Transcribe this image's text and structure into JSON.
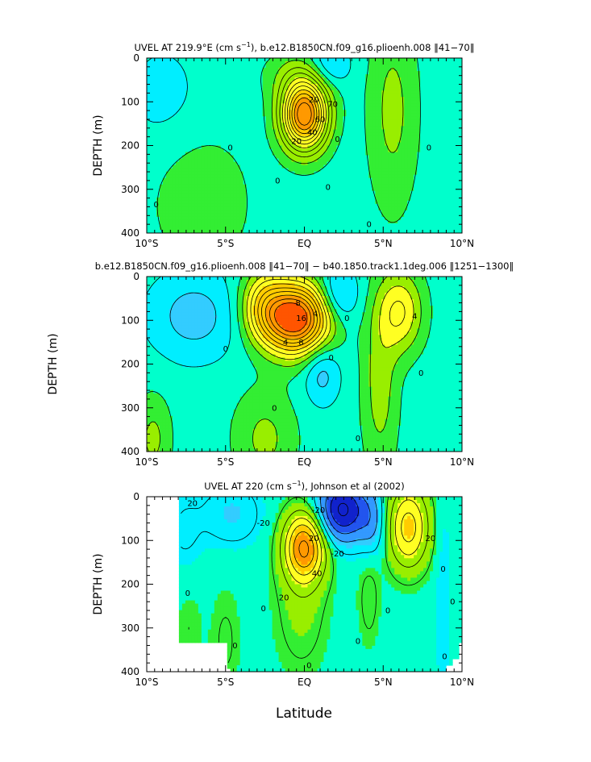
{
  "colors": {
    "background_0": "#00ffcc",
    "pos_1": "#33ee33",
    "pos_2": "#99ee00",
    "pos_3": "#ffff22",
    "pos_4": "#ffcc00",
    "pos_5": "#ff9900",
    "pos_6": "#ff5500",
    "pos_7": "#ee1100",
    "neg_1": "#00eeff",
    "neg_2": "#33ccff",
    "neg_3": "#3399ff",
    "neg_4": "#2255ee",
    "neg_5": "#1122cc",
    "contour_line": "#000000"
  },
  "figure": {
    "xlabel": "Latitude"
  },
  "chart_data": [
    {
      "type": "heatmap",
      "title": "UVEL AT 219.9°E (cm s",
      "title_sup": "−1",
      "title_rest": "), b.e12.B1850CN.f09_g16.plioenh.008 ‖41−70‖",
      "ylabel": "DEPTH (m)",
      "xlabel": "",
      "x_range": [
        -10,
        10
      ],
      "y_range": [
        0,
        400
      ],
      "y_inverted": true,
      "x_tick_labels": [
        "10°S",
        "5°S",
        "EQ",
        "5°N",
        "10°N"
      ],
      "x_tick_values": [
        -10,
        -5,
        0,
        5,
        10
      ],
      "y_tick_values": [
        0,
        100,
        200,
        300,
        400
      ],
      "blobs": [
        {
          "x": 0,
          "y": 130,
          "sx": 1.0,
          "sy": 55,
          "amp": 115
        },
        {
          "x": -0.2,
          "y": 40,
          "sx": 1.6,
          "sy": 40,
          "amp": 15
        },
        {
          "x": 5.6,
          "y": 120,
          "sx": 1.1,
          "sy": 160,
          "amp": 18
        },
        {
          "x": -6.5,
          "y": 330,
          "sx": 2.0,
          "sy": 100,
          "amp": 14
        },
        {
          "x": 1.5,
          "y": 20,
          "sx": 1.0,
          "sy": 35,
          "amp": -22
        },
        {
          "x": -9,
          "y": 80,
          "sx": 1.8,
          "sy": 90,
          "amp": -8
        }
      ],
      "contour_levels": [
        -25,
        -15,
        -5,
        5,
        15,
        25,
        35,
        45,
        55,
        65,
        75,
        85,
        95,
        105
      ],
      "color_steps": [
        -25,
        -15,
        -5,
        5,
        15,
        45,
        75,
        95
      ],
      "mask": [],
      "labels": [
        {
          "text": "0",
          "x": -9.4,
          "y": 335
        },
        {
          "text": "0",
          "x": -4.7,
          "y": 205
        },
        {
          "text": "0",
          "x": -1.7,
          "y": 280
        },
        {
          "text": "20",
          "x": -0.5,
          "y": 190
        },
        {
          "text": "40",
          "x": 0.5,
          "y": 170
        },
        {
          "text": "60",
          "x": 1.0,
          "y": 140
        },
        {
          "text": "70",
          "x": 1.8,
          "y": 105
        },
        {
          "text": "20",
          "x": 0.6,
          "y": 95
        },
        {
          "text": "0",
          "x": 1.5,
          "y": 295
        },
        {
          "text": "0",
          "x": 2.1,
          "y": 185
        },
        {
          "text": "0",
          "x": 4.1,
          "y": 380
        },
        {
          "text": "0",
          "x": 7.9,
          "y": 205
        }
      ]
    },
    {
      "type": "heatmap",
      "title": "b.e12.B1850CN.f09_g16.plioenh.008 ‖41−70‖ − b40.1850.track1.1deg.006 ‖1251−1300‖",
      "title_sup": "",
      "title_rest": "",
      "ylabel": "DEPTH (m)",
      "xlabel": "",
      "x_range": [
        -10,
        10
      ],
      "y_range": [
        0,
        400
      ],
      "y_inverted": true,
      "x_tick_labels": [
        "10°S",
        "5°S",
        "EQ",
        "5°N",
        "10°N"
      ],
      "x_tick_values": [
        -10,
        -5,
        0,
        5,
        10
      ],
      "y_tick_values": [
        0,
        100,
        200,
        300,
        400
      ],
      "blobs": [
        {
          "x": -0.6,
          "y": 95,
          "sx": 1.5,
          "sy": 55,
          "amp": 22
        },
        {
          "x": -2.6,
          "y": 60,
          "sx": 1.0,
          "sy": 55,
          "amp": 6
        },
        {
          "x": 6.1,
          "y": 80,
          "sx": 1.0,
          "sy": 65,
          "amp": 7
        },
        {
          "x": 4.8,
          "y": 250,
          "sx": 0.8,
          "sy": 140,
          "amp": 4
        },
        {
          "x": -2.5,
          "y": 370,
          "sx": 1.4,
          "sy": 80,
          "amp": 3.5
        },
        {
          "x": -9.6,
          "y": 370,
          "sx": 0.8,
          "sy": 70,
          "amp": 3.5
        },
        {
          "x": -7,
          "y": 90,
          "sx": 2.0,
          "sy": 70,
          "amp": -4
        },
        {
          "x": 2.1,
          "y": 45,
          "sx": 0.9,
          "sy": 45,
          "amp": -5
        },
        {
          "x": 1.1,
          "y": 220,
          "sx": 0.8,
          "sy": 50,
          "amp": -4
        }
      ],
      "contour_levels": [
        -5,
        -3,
        -1,
        1,
        3,
        5,
        7,
        9,
        11,
        13,
        15,
        17,
        19
      ],
      "color_steps": [
        -3,
        -1,
        1,
        3,
        5,
        9,
        15,
        19
      ],
      "mask": [],
      "labels": [
        {
          "text": "0",
          "x": -5.0,
          "y": 165
        },
        {
          "text": "0",
          "x": -1.9,
          "y": 300
        },
        {
          "text": "4",
          "x": -1.2,
          "y": 150
        },
        {
          "text": "8",
          "x": -0.4,
          "y": 60
        },
        {
          "text": "8",
          "x": -0.2,
          "y": 150
        },
        {
          "text": "16",
          "x": -0.2,
          "y": 95
        },
        {
          "text": "4",
          "x": 0.7,
          "y": 85
        },
        {
          "text": "0",
          "x": 2.7,
          "y": 95
        },
        {
          "text": "0",
          "x": 1.7,
          "y": 185
        },
        {
          "text": "4",
          "x": 7.0,
          "y": 90
        },
        {
          "text": "0",
          "x": 7.4,
          "y": 220
        },
        {
          "text": "0",
          "x": 3.4,
          "y": 370
        }
      ]
    },
    {
      "type": "heatmap",
      "title": "UVEL AT 220 (cm s",
      "title_sup": "−1",
      "title_rest": "), Johnson et al (2002)",
      "ylabel": "DEPTH (m)",
      "xlabel": "Latitude",
      "x_range": [
        -10,
        10
      ],
      "y_range": [
        0,
        400
      ],
      "y_inverted": true,
      "x_tick_labels": [
        "10°S",
        "5°S",
        "EQ",
        "5°N",
        "10°N"
      ],
      "x_tick_values": [
        -10,
        -5,
        0,
        5,
        10
      ],
      "y_tick_values": [
        0,
        100,
        200,
        300,
        400
      ],
      "blobs": [
        {
          "x": 0,
          "y": 115,
          "sx": 0.9,
          "sy": 55,
          "amp": 110
        },
        {
          "x": -0.2,
          "y": 250,
          "sx": 1.2,
          "sy": 110,
          "amp": 18
        },
        {
          "x": 6.6,
          "y": 70,
          "sx": 0.9,
          "sy": 65,
          "amp": 80
        },
        {
          "x": 4.1,
          "y": 230,
          "sx": 0.5,
          "sy": 80,
          "amp": 15
        },
        {
          "x": -5.0,
          "y": 330,
          "sx": 0.7,
          "sy": 90,
          "amp": 12
        },
        {
          "x": -7.3,
          "y": 300,
          "sx": 0.6,
          "sy": 60,
          "amp": 10
        },
        {
          "x": 2.4,
          "y": 30,
          "sx": 1.1,
          "sy": 50,
          "amp": -95
        },
        {
          "x": -4.6,
          "y": 40,
          "sx": 1.3,
          "sy": 50,
          "amp": -22
        },
        {
          "x": 4.3,
          "y": 60,
          "sx": 0.6,
          "sy": 55,
          "amp": -30
        },
        {
          "x": 8.8,
          "y": 200,
          "sx": 0.4,
          "sy": 220,
          "amp": -10
        },
        {
          "x": -7.6,
          "y": 80,
          "sx": 0.8,
          "sy": 60,
          "amp": -12
        }
      ],
      "contour_levels": [
        -90,
        -70,
        -50,
        -30,
        -10,
        10,
        30,
        50,
        70,
        90,
        110
      ],
      "color_steps": [
        -70,
        -50,
        -30,
        -20,
        -5,
        5,
        15,
        45,
        75,
        95
      ],
      "mask": [
        {
          "x0": -10,
          "x1": -8.0,
          "y0": 0,
          "y1": 400
        },
        {
          "x0": -8.0,
          "x1": -5.0,
          "y0": 335,
          "y1": 400
        },
        {
          "x0": -5.0,
          "x1": -4.7,
          "y0": 395,
          "y1": 400
        },
        {
          "x0": 9.7,
          "x1": 10,
          "y0": 330,
          "y1": 400
        },
        {
          "x0": 9.3,
          "x1": 9.7,
          "y0": 370,
          "y1": 400
        },
        {
          "x0": 9.0,
          "x1": 9.3,
          "y0": 385,
          "y1": 400
        }
      ],
      "labels": [
        {
          "text": "20",
          "x": -7.1,
          "y": 15
        },
        {
          "text": "-20",
          "x": -2.6,
          "y": 60
        },
        {
          "text": "-20",
          "x": 0.9,
          "y": 30
        },
        {
          "text": "-20",
          "x": 2.1,
          "y": 130
        },
        {
          "text": "20",
          "x": 0.6,
          "y": 95
        },
        {
          "text": "40",
          "x": 0.8,
          "y": 175
        },
        {
          "text": "20",
          "x": -1.3,
          "y": 230
        },
        {
          "text": "0",
          "x": -7.4,
          "y": 220
        },
        {
          "text": "0",
          "x": -4.4,
          "y": 340
        },
        {
          "text": "0",
          "x": -2.6,
          "y": 255
        },
        {
          "text": "0",
          "x": 3.4,
          "y": 330
        },
        {
          "text": "0",
          "x": 5.3,
          "y": 260
        },
        {
          "text": "20",
          "x": 8.0,
          "y": 95
        },
        {
          "text": "0",
          "x": 8.8,
          "y": 165
        },
        {
          "text": "0",
          "x": 9.4,
          "y": 240
        },
        {
          "text": "0",
          "x": 8.9,
          "y": 365
        },
        {
          "text": "0",
          "x": 0.3,
          "y": 385
        }
      ]
    }
  ]
}
